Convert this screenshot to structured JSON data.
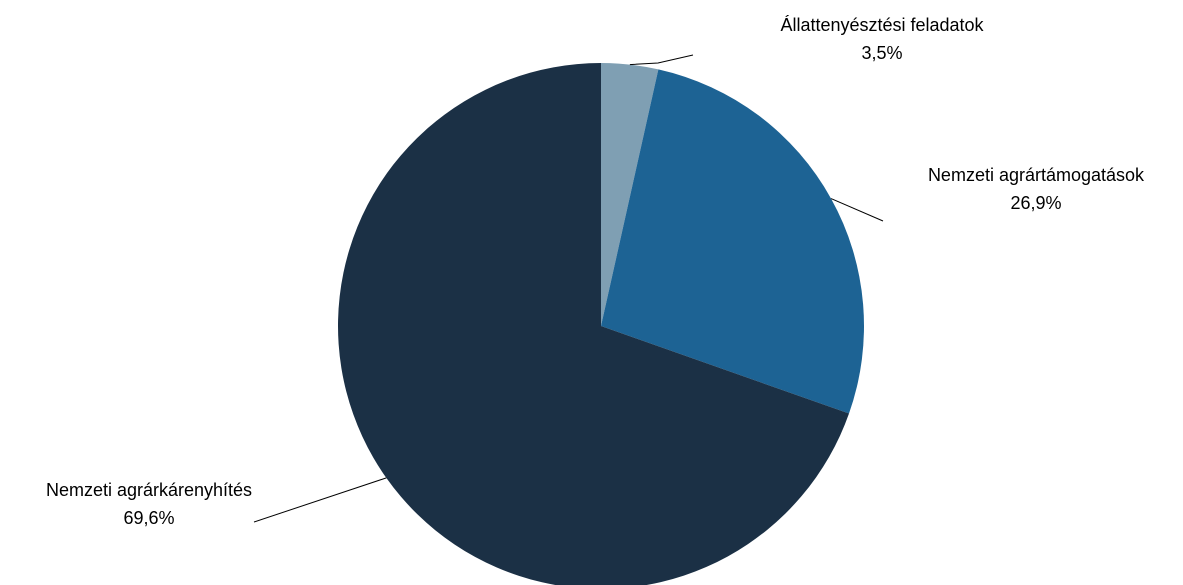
{
  "chart_data": {
    "type": "pie",
    "title": "",
    "start_angle_deg": 0,
    "direction": "clockwise",
    "slices": [
      {
        "label": "Állattenyésztési feladatok",
        "value": 3.5,
        "value_label": "3,5%",
        "color": "#7f9fb3"
      },
      {
        "label": "Nemzeti agrártámogatások",
        "value": 26.9,
        "value_label": "26,9%",
        "color": "#1d6394"
      },
      {
        "label": "Nemzeti agrárkárenyhítés",
        "value": 69.6,
        "value_label": "69,6%",
        "color": "#1b3045"
      }
    ],
    "legend": "none",
    "data_labels": "outside-with-leader-lines"
  }
}
